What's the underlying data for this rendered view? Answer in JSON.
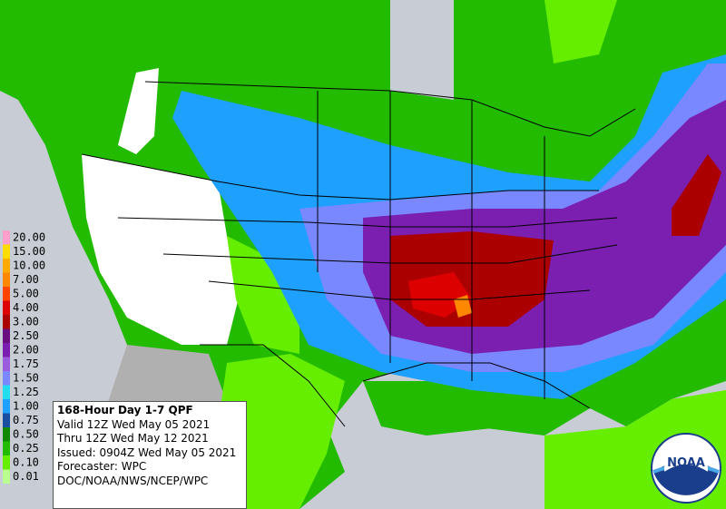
{
  "legend": {
    "items": [
      {
        "label": "20.00",
        "color": "#ffa0cc"
      },
      {
        "label": "15.00",
        "color": "#ffdd00"
      },
      {
        "label": "10.00",
        "color": "#ffaa00"
      },
      {
        "label": "7.00",
        "color": "#ff8800"
      },
      {
        "label": "5.00",
        "color": "#ff4400"
      },
      {
        "label": "4.00",
        "color": "#dd0000"
      },
      {
        "label": "3.00",
        "color": "#aa0000"
      },
      {
        "label": "2.50",
        "color": "#6b0f80"
      },
      {
        "label": "2.00",
        "color": "#7a1fb0"
      },
      {
        "label": "1.75",
        "color": "#9a5bdc"
      },
      {
        "label": "1.50",
        "color": "#7a88ff"
      },
      {
        "label": "1.25",
        "color": "#22ddee"
      },
      {
        "label": "1.00",
        "color": "#1ea0ff"
      },
      {
        "label": "0.75",
        "color": "#1a4ea0"
      },
      {
        "label": "0.50",
        "color": "#118800"
      },
      {
        "label": "0.25",
        "color": "#22bb00"
      },
      {
        "label": "0.10",
        "color": "#66ee00"
      },
      {
        "label": "0.01",
        "color": "#b8ff90"
      }
    ]
  },
  "info": {
    "title": "168-Hour Day 1-7 QPF",
    "lines": [
      "Valid 12Z Wed May 05 2021",
      "Thru 12Z Wed May 12 2021",
      "Issued: 0904Z Wed May 05 2021",
      "Forecaster: WPC",
      "DOC/NOAA/NWS/NCEP/WPC"
    ]
  },
  "logo": {
    "text": "NOAA"
  }
}
